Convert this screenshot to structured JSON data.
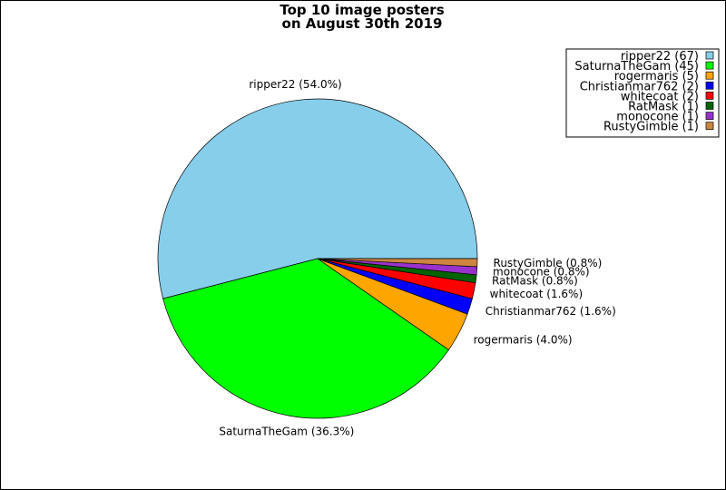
{
  "chart_data": {
    "type": "pie",
    "title": "Top 10 image posters",
    "subtitle": "on August 30th 2019",
    "slices": [
      {
        "name": "ripper22",
        "value": 67,
        "pct_label": "ripper22 (54.0%)",
        "legend_label": "ripper22 (67)",
        "color": "#87CEEB"
      },
      {
        "name": "SaturnaTheGam",
        "value": 45,
        "pct_label": "SaturnaTheGam (36.3%)",
        "legend_label": "SaturnaTheGam (45)",
        "color": "#00FF00"
      },
      {
        "name": "rogermaris",
        "value": 5,
        "pct_label": "rogermaris (4.0%)",
        "legend_label": "rogermaris (5)",
        "color": "#FFA500"
      },
      {
        "name": "Christianmar762",
        "value": 2,
        "pct_label": "Christianmar762 (1.6%)",
        "legend_label": "Christianmar762 (2)",
        "color": "#0000FF"
      },
      {
        "name": "whitecoat",
        "value": 2,
        "pct_label": "whitecoat (1.6%)",
        "legend_label": "whitecoat (2)",
        "color": "#FF0000"
      },
      {
        "name": "RatMask",
        "value": 1,
        "pct_label": "RatMask (0.8%)",
        "legend_label": "RatMask (1)",
        "color": "#006400"
      },
      {
        "name": "monocone",
        "value": 1,
        "pct_label": "monocone (0.8%)",
        "legend_label": "monocone (1)",
        "color": "#9932CC"
      },
      {
        "name": "RustyGimble",
        "value": 1,
        "pct_label": "RustyGimble (0.8%)",
        "legend_label": "RustyGimble (1)",
        "color": "#CD853F"
      }
    ],
    "legend_position": "top-right"
  }
}
